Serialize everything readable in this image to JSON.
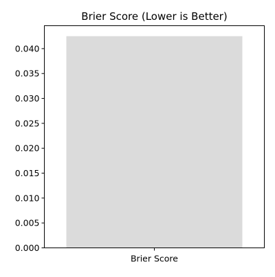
{
  "chart_data": {
    "type": "bar",
    "title": "Brier Score (Lower is Better)",
    "categories": [
      "Brier Score"
    ],
    "values": [
      0.0425
    ],
    "xlabel": "",
    "ylabel": "",
    "ylim": [
      0,
      0.0446
    ],
    "yticks": [
      0.0,
      0.005,
      0.01,
      0.015,
      0.02,
      0.025,
      0.03,
      0.035,
      0.04
    ],
    "ytick_labels": [
      "0.000",
      "0.005",
      "0.010",
      "0.015",
      "0.020",
      "0.025",
      "0.030",
      "0.035",
      "0.040"
    ],
    "grid": false,
    "legend": "none",
    "bar_color": "#dbdbdb"
  }
}
